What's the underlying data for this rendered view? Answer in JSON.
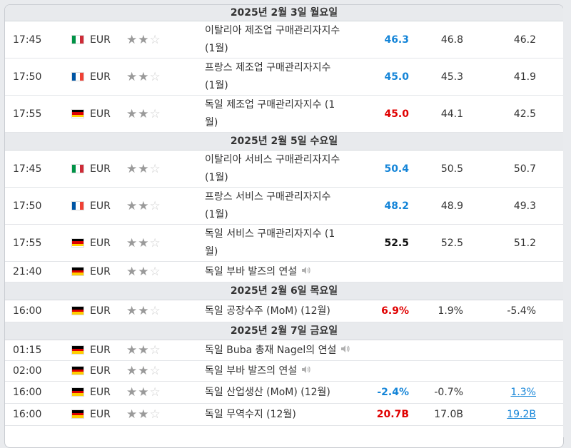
{
  "colors": {
    "better": "#1585d8",
    "worse": "#e00000",
    "neutral": "#111111",
    "header_bg": "#e8eaed"
  },
  "sections": [
    {
      "date": "2025년 2월 3일 월요일",
      "events": [
        {
          "time": "17:45",
          "flag": "italy-flag",
          "currency": "EUR",
          "importance": 2,
          "name_lines": [
            "이탈리아 제조업 구매관리자지수",
            "(1월)"
          ],
          "actual": "46.3",
          "actual_color": "blue",
          "forecast": "46.8",
          "previous": "46.2"
        },
        {
          "time": "17:50",
          "flag": "france-flag",
          "currency": "EUR",
          "importance": 2,
          "name_lines": [
            "프랑스 제조업 구매관리자지수",
            "(1월)"
          ],
          "actual": "45.0",
          "actual_color": "blue",
          "forecast": "45.3",
          "previous": "41.9"
        },
        {
          "time": "17:55",
          "flag": "germany-flag",
          "currency": "EUR",
          "importance": 2,
          "name_lines": [
            "독일 제조업 구매관리자지수 (1",
            "월)"
          ],
          "actual": "45.0",
          "actual_color": "red",
          "forecast": "44.1",
          "previous": "42.5"
        }
      ]
    },
    {
      "date": "2025년 2월 5일 수요일",
      "events": [
        {
          "time": "17:45",
          "flag": "italy-flag",
          "currency": "EUR",
          "importance": 2,
          "name_lines": [
            "이탈리아 서비스 구매관리자지수",
            "(1월)"
          ],
          "actual": "50.4",
          "actual_color": "blue",
          "forecast": "50.5",
          "previous": "50.7"
        },
        {
          "time": "17:50",
          "flag": "france-flag",
          "currency": "EUR",
          "importance": 2,
          "name_lines": [
            "프랑스 서비스 구매관리자지수",
            "(1월)"
          ],
          "actual": "48.2",
          "actual_color": "blue",
          "forecast": "48.9",
          "previous": "49.3"
        },
        {
          "time": "17:55",
          "flag": "germany-flag",
          "currency": "EUR",
          "importance": 2,
          "name_lines": [
            "독일 서비스 구매관리자지수 (1",
            "월)"
          ],
          "actual": "52.5",
          "actual_color": "black",
          "forecast": "52.5",
          "previous": "51.2"
        },
        {
          "time": "21:40",
          "flag": "germany-flag",
          "currency": "EUR",
          "importance": 2,
          "name_lines": [
            "독일 부바 발즈의 연설"
          ],
          "speech": true,
          "actual": "",
          "actual_color": "black",
          "forecast": "",
          "previous": ""
        }
      ]
    },
    {
      "date": "2025년 2월 6일 목요일",
      "events": [
        {
          "time": "16:00",
          "flag": "germany-flag",
          "currency": "EUR",
          "importance": 2,
          "name_lines": [
            "독일 공장수주 (MoM) (12월)"
          ],
          "actual": "6.9%",
          "actual_color": "red",
          "forecast": "1.9%",
          "previous": "-5.4%"
        }
      ]
    },
    {
      "date": "2025년 2월 7일 금요일",
      "events": [
        {
          "time": "01:15",
          "flag": "germany-flag",
          "currency": "EUR",
          "importance": 2,
          "name_lines": [
            "독일 Buba 총재 Nagel의 연설"
          ],
          "speech": true,
          "actual": "",
          "actual_color": "black",
          "forecast": "",
          "previous": ""
        },
        {
          "time": "02:00",
          "flag": "germany-flag",
          "currency": "EUR",
          "importance": 2,
          "name_lines": [
            "독일 부바 발즈의 연설"
          ],
          "speech": true,
          "actual": "",
          "actual_color": "black",
          "forecast": "",
          "previous": ""
        },
        {
          "time": "16:00",
          "flag": "germany-flag",
          "currency": "EUR",
          "importance": 2,
          "name_lines": [
            "독일 산업생산 (MoM) (12월)"
          ],
          "actual": "-2.4%",
          "actual_color": "blue",
          "forecast": "-0.7%",
          "previous": "1.3%",
          "previous_link": true
        },
        {
          "time": "16:00",
          "flag": "germany-flag",
          "currency": "EUR",
          "importance": 2,
          "name_lines": [
            "독일 무역수지 (12월)"
          ],
          "actual": "20.7B",
          "actual_color": "red",
          "forecast": "17.0B",
          "previous": "19.2B",
          "previous_link": true
        }
      ]
    }
  ]
}
